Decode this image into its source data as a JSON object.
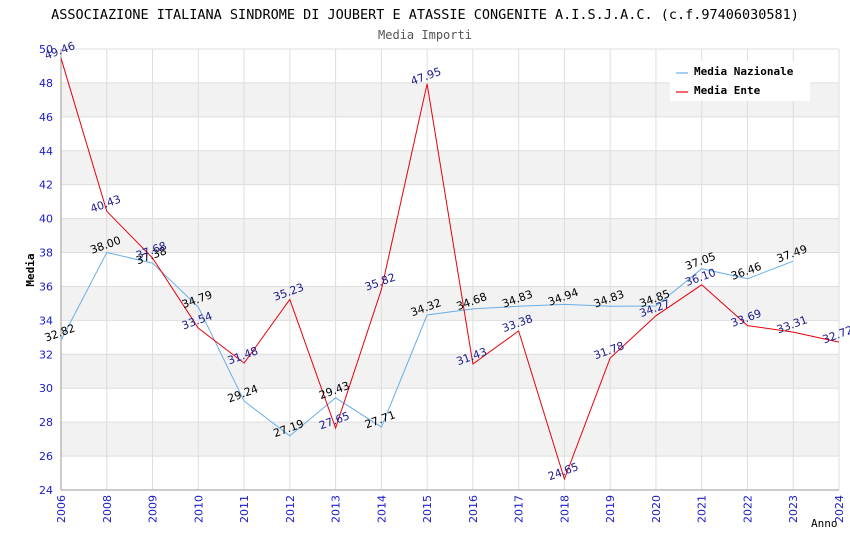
{
  "chart_data": {
    "type": "line",
    "title": "ASSOCIAZIONE ITALIANA SINDROME DI JOUBERT E ATASSIE CONGENITE A.I.S.J.A.C. (c.f.97406030581)",
    "subtitle": "Media Importi",
    "xlabel": "Anno",
    "ylabel": "Media",
    "ylim": [
      24,
      50
    ],
    "yticks": [
      "24",
      "26",
      "28",
      "30",
      "32",
      "34",
      "36",
      "38",
      "40",
      "42",
      "44",
      "46",
      "48",
      "50"
    ],
    "categories": [
      "2006",
      "2008",
      "2009",
      "2010",
      "2011",
      "2012",
      "2013",
      "2014",
      "2015",
      "2016",
      "2017",
      "2018",
      "2019",
      "2020",
      "2021",
      "2022",
      "2023",
      "2024"
    ],
    "legend_position": "top-right",
    "series": [
      {
        "name": "Media Nazionale",
        "color": "#6aaee8",
        "label_color": "#000000",
        "values": [
          32.82,
          38.0,
          37.38,
          34.79,
          29.24,
          27.19,
          29.43,
          27.71,
          34.32,
          34.68,
          34.83,
          34.94,
          34.83,
          34.85,
          37.05,
          36.46,
          37.49,
          null
        ],
        "labels": [
          "32.82",
          "38.00",
          "37.38",
          "34.79",
          "29.24",
          "27.19",
          "29.43",
          "27.71",
          "34.32",
          "34.68",
          "34.83",
          "34.94",
          "34.83",
          "34.85",
          "37.05",
          "36.46",
          "37.49",
          ""
        ]
      },
      {
        "name": "Media Ente",
        "color": "#e8000b",
        "label_color": "#1a1a8c",
        "values": [
          49.46,
          40.43,
          37.68,
          33.54,
          31.48,
          35.23,
          27.65,
          35.82,
          47.95,
          31.43,
          33.38,
          24.65,
          31.78,
          34.27,
          36.1,
          33.69,
          33.31,
          32.72
        ],
        "labels": [
          "49.46",
          "40.43",
          "37.68",
          "33.54",
          "31.48",
          "35.23",
          "27.65",
          "35.82",
          "47.95",
          "31.43",
          "33.38",
          "24.65",
          "31.78",
          "34.27",
          "36.10",
          "33.69",
          "33.31",
          "32.72"
        ]
      }
    ]
  }
}
